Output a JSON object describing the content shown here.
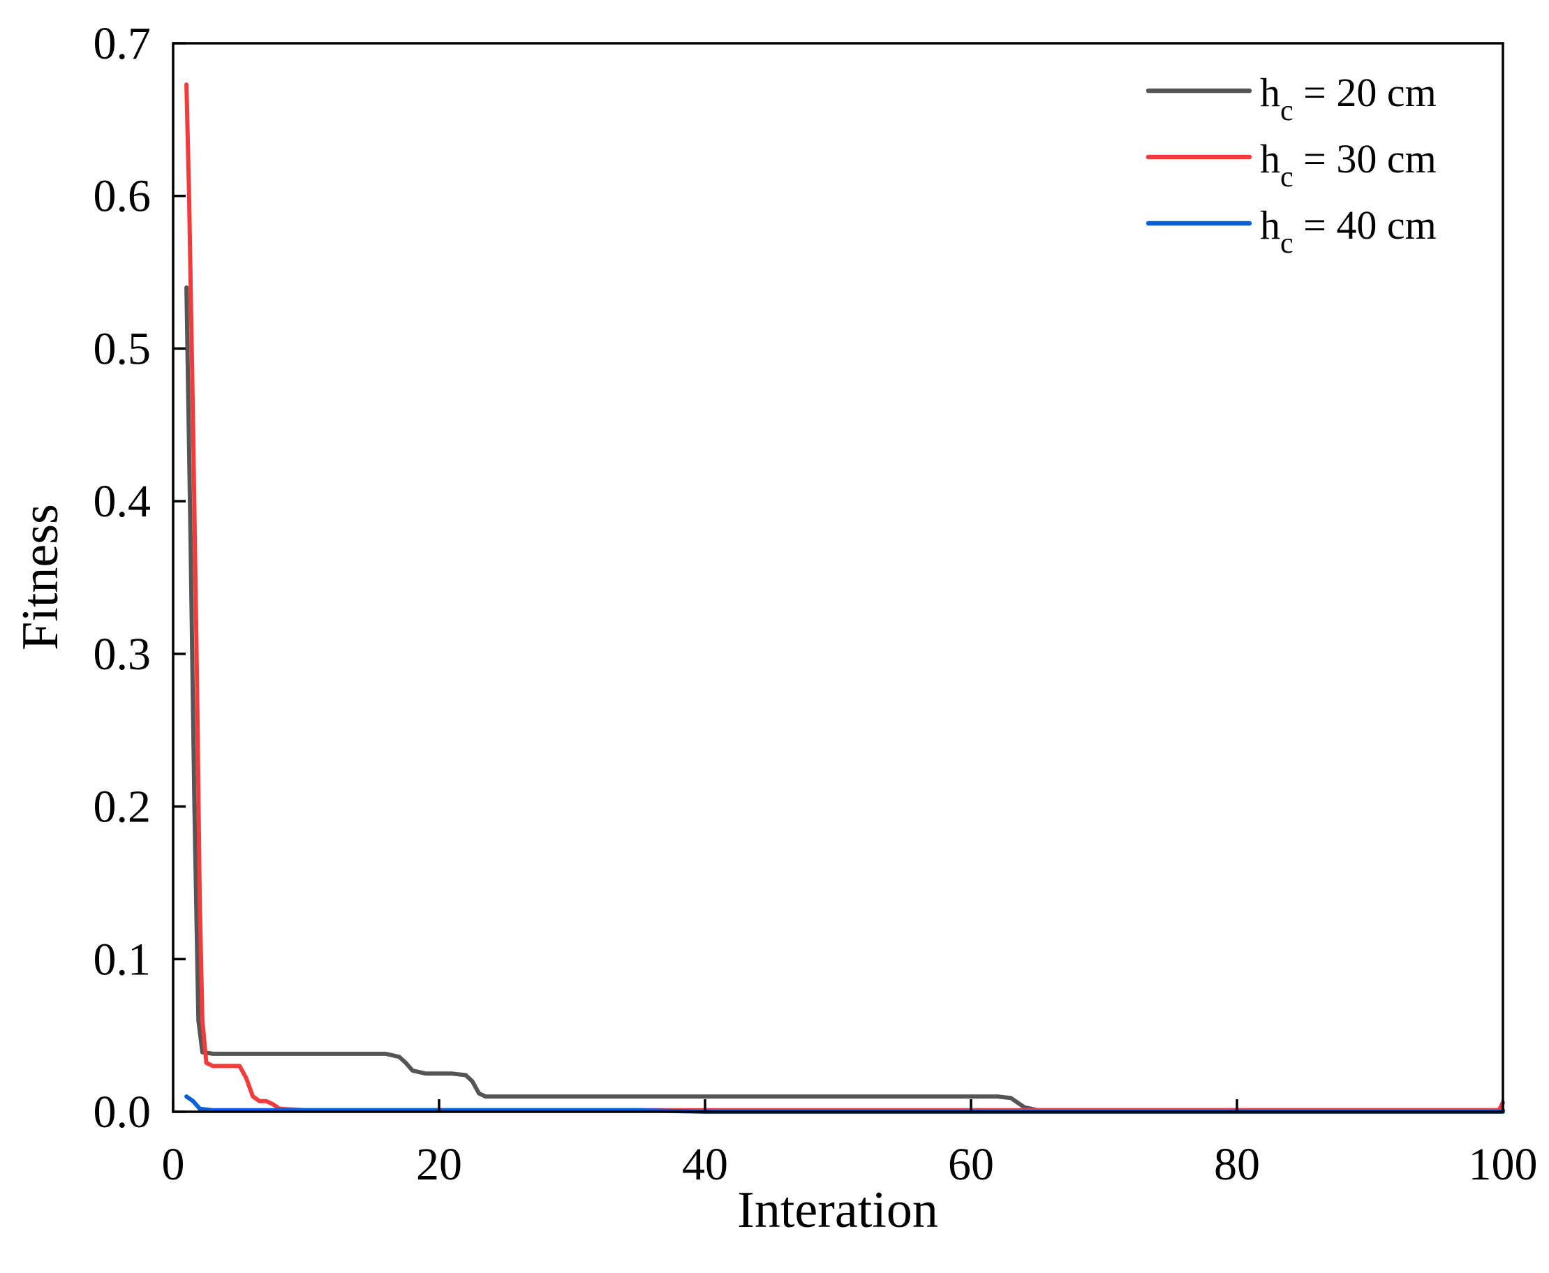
{
  "chart_data": {
    "type": "line",
    "xlabel": "Interation",
    "ylabel": "Fitness",
    "xlim": [
      0,
      100
    ],
    "ylim": [
      0,
      0.7
    ],
    "xticks": [
      0,
      20,
      40,
      60,
      80,
      100
    ],
    "yticks": [
      0.0,
      0.1,
      0.2,
      0.3,
      0.4,
      0.5,
      0.6,
      0.7
    ],
    "xtick_labels": [
      "0",
      "20",
      "40",
      "60",
      "80",
      "100"
    ],
    "ytick_labels": [
      "0.0",
      "0.1",
      "0.2",
      "0.3",
      "0.4",
      "0.5",
      "0.6",
      "0.7"
    ],
    "grid": false,
    "legend_position": "top-right",
    "series": [
      {
        "name": "h_c = 20 cm",
        "legend": {
          "main": "h",
          "sub": "c",
          "rest": " = 20 cm"
        },
        "color": "#555555",
        "x": [
          1,
          1.3,
          1.6,
          1.9,
          2.2,
          3,
          5,
          10,
          15,
          16,
          17,
          17.5,
          18,
          19,
          20,
          21,
          22,
          22.5,
          23,
          23.5,
          25,
          30,
          40,
          50,
          60,
          61,
          62,
          63,
          63.5,
          64,
          64.5,
          65,
          70,
          80,
          90,
          100
        ],
        "y": [
          0.54,
          0.38,
          0.2,
          0.06,
          0.039,
          0.038,
          0.038,
          0.038,
          0.038,
          0.038,
          0.036,
          0.032,
          0.027,
          0.025,
          0.025,
          0.025,
          0.024,
          0.02,
          0.012,
          0.01,
          0.01,
          0.01,
          0.01,
          0.01,
          0.01,
          0.01,
          0.01,
          0.009,
          0.006,
          0.003,
          0.002,
          0.001,
          0.001,
          0.001,
          0.001,
          0.001
        ]
      },
      {
        "name": "h_c = 30 cm",
        "legend": {
          "main": "h",
          "sub": "c",
          "rest": " = 30 cm"
        },
        "color": "#f23c3c",
        "x": [
          1,
          1.2,
          1.5,
          1.8,
          2,
          2.2,
          2.5,
          3,
          4,
          5,
          5.5,
          6,
          6.5,
          7,
          7.5,
          8,
          10,
          20,
          40,
          60,
          80,
          99.7,
          100
        ],
        "y": [
          0.673,
          0.6,
          0.45,
          0.28,
          0.14,
          0.06,
          0.032,
          0.03,
          0.03,
          0.03,
          0.022,
          0.01,
          0.007,
          0.007,
          0.005,
          0.002,
          0.001,
          0.001,
          0.001,
          0.001,
          0.001,
          0.001,
          0.006
        ]
      },
      {
        "name": "h_c = 40 cm",
        "legend": {
          "main": "h",
          "sub": "c",
          "rest": " = 40 cm"
        },
        "color": "#0a5fd8",
        "x": [
          1,
          1.5,
          2,
          3,
          10,
          20,
          35,
          40,
          60,
          80,
          100
        ],
        "y": [
          0.01,
          0.007,
          0.002,
          0.001,
          0.001,
          0.001,
          0.001,
          0.0,
          0.0,
          0.0,
          0.0
        ]
      }
    ]
  }
}
